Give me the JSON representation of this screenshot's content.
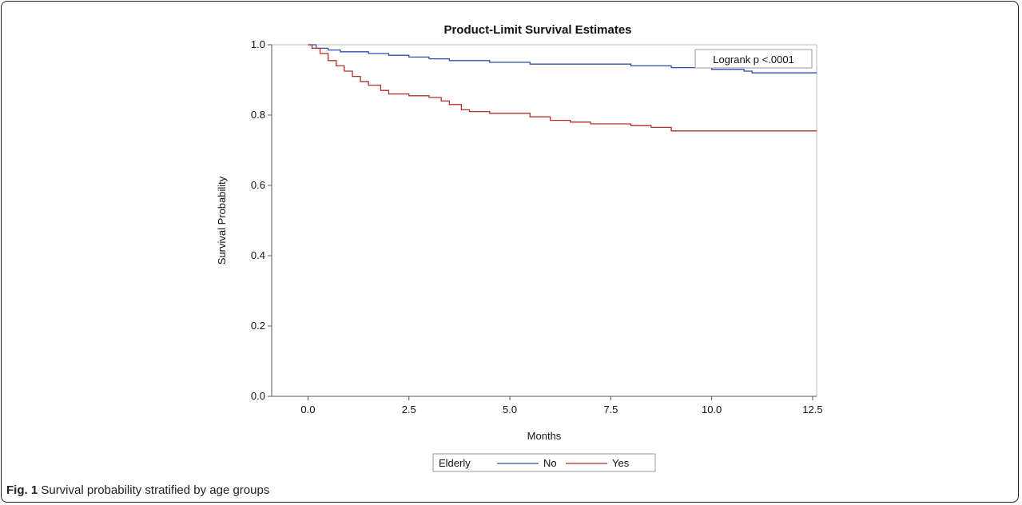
{
  "caption": {
    "label": "Fig. 1",
    "text": "Survival probability stratified by age groups"
  },
  "chart_data": {
    "type": "line",
    "step": true,
    "title": "Product-Limit Survival Estimates",
    "xlabel": "Months",
    "ylabel": "Survival Probability",
    "xlim": [
      -0.9,
      12.6
    ],
    "ylim": [
      0,
      1.0
    ],
    "xticks": [
      "0.0",
      "2.5",
      "5.0",
      "7.5",
      "10.0",
      "12.5"
    ],
    "yticks": [
      "0.0",
      "0.2",
      "0.4",
      "0.6",
      "0.8",
      "1.0"
    ],
    "annotation": "Logrank p <.0001",
    "legend": {
      "title": "Elderly",
      "position": "bottom"
    },
    "series": [
      {
        "name": "No",
        "color": "#2f4fa8",
        "x": [
          0,
          0.2,
          0.5,
          0.8,
          1.5,
          2.0,
          2.5,
          3.0,
          3.5,
          4.5,
          5.5,
          7.0,
          8.0,
          8.5,
          9.0,
          10.0,
          10.8,
          11.0,
          12.6
        ],
        "y": [
          1.0,
          0.99,
          0.985,
          0.98,
          0.975,
          0.97,
          0.965,
          0.96,
          0.955,
          0.95,
          0.945,
          0.945,
          0.94,
          0.94,
          0.935,
          0.93,
          0.925,
          0.92,
          0.92
        ]
      },
      {
        "name": "Yes",
        "color": "#b03028",
        "x": [
          0,
          0.1,
          0.3,
          0.5,
          0.7,
          0.9,
          1.1,
          1.3,
          1.5,
          1.8,
          2.0,
          2.5,
          3.0,
          3.3,
          3.5,
          3.8,
          4.0,
          4.5,
          5.5,
          6.0,
          6.5,
          7.0,
          8.0,
          8.5,
          9.0,
          12.6
        ],
        "y": [
          1.0,
          0.99,
          0.975,
          0.955,
          0.94,
          0.925,
          0.91,
          0.895,
          0.885,
          0.87,
          0.86,
          0.855,
          0.85,
          0.84,
          0.83,
          0.815,
          0.81,
          0.805,
          0.795,
          0.785,
          0.78,
          0.775,
          0.77,
          0.765,
          0.755,
          0.755
        ]
      }
    ]
  }
}
